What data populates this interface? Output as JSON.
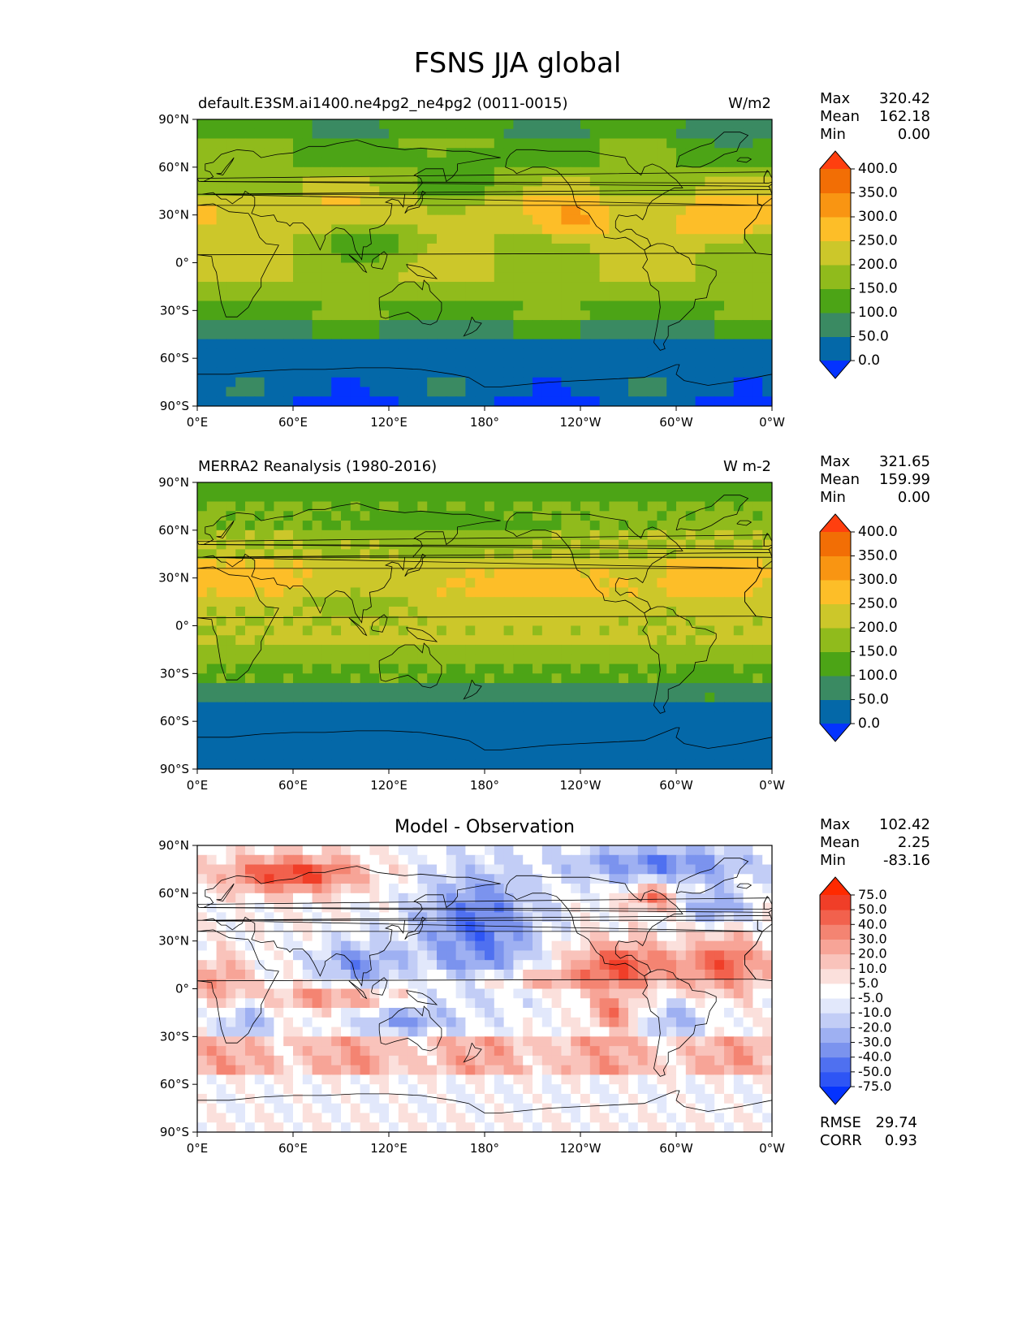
{
  "figure": {
    "title": "FSNS JJA global"
  },
  "chart_data": [
    {
      "type": "heatmap",
      "title": "default.E3SM.ai1400.ne4pg2_ne4pg2 (0011-0015)",
      "units": "W/m2",
      "x_ticks": [
        "0°E",
        "60°E",
        "120°E",
        "180°",
        "120°W",
        "60°W",
        "0°W"
      ],
      "y_ticks": [
        "90°N",
        "60°N",
        "30°N",
        "0°",
        "30°S",
        "60°S",
        "90°S"
      ],
      "xlim": [
        0,
        360
      ],
      "ylim": [
        -90,
        90
      ],
      "colorbar": {
        "levels": [
          "0.0",
          "50.0",
          "100.0",
          "150.0",
          "200.0",
          "250.0",
          "300.0",
          "350.0",
          "400.0"
        ],
        "colors": [
          "#0433ff",
          "#0468a8",
          "#3a8a62",
          "#4ca416",
          "#90bb1c",
          "#ccc72a",
          "#fdbe28",
          "#f99512",
          "#f26e05",
          "#ff3f0f"
        ]
      },
      "stats": [
        {
          "label": "Max",
          "value": "320.42"
        },
        {
          "label": "Mean",
          "value": "162.18"
        },
        {
          "label": "Min",
          "value": "0.00"
        }
      ]
    },
    {
      "type": "heatmap",
      "title": "MERRA2 Reanalysis (1980-2016)",
      "units": "W m-2",
      "x_ticks": [
        "0°E",
        "60°E",
        "120°E",
        "180°",
        "120°W",
        "60°W",
        "0°W"
      ],
      "y_ticks": [
        "90°N",
        "60°N",
        "30°N",
        "0°",
        "30°S",
        "60°S",
        "90°S"
      ],
      "xlim": [
        0,
        360
      ],
      "ylim": [
        -90,
        90
      ],
      "colorbar": {
        "levels": [
          "0.0",
          "50.0",
          "100.0",
          "150.0",
          "200.0",
          "250.0",
          "300.0",
          "350.0",
          "400.0"
        ],
        "colors": [
          "#0433ff",
          "#0468a8",
          "#3a8a62",
          "#4ca416",
          "#90bb1c",
          "#ccc72a",
          "#fdbe28",
          "#f99512",
          "#f26e05",
          "#ff3f0f"
        ]
      },
      "stats": [
        {
          "label": "Max",
          "value": "321.65"
        },
        {
          "label": "Mean",
          "value": "159.99"
        },
        {
          "label": "Min",
          "value": "0.00"
        }
      ]
    },
    {
      "type": "heatmap",
      "title": "Model - Observation",
      "units": "",
      "x_ticks": [
        "0°E",
        "60°E",
        "120°E",
        "180°",
        "120°W",
        "60°W",
        "0°W"
      ],
      "y_ticks": [
        "90°N",
        "60°N",
        "30°N",
        "0°",
        "30°S",
        "60°S",
        "90°S"
      ],
      "xlim": [
        0,
        360
      ],
      "ylim": [
        -90,
        90
      ],
      "colorbar": {
        "levels": [
          "-75.0",
          "-50.0",
          "-40.0",
          "-30.0",
          "-20.0",
          "-10.0",
          "-5.0",
          "5.0",
          "10.0",
          "20.0",
          "30.0",
          "40.0",
          "50.0",
          "75.0"
        ],
        "colors": [
          "#0433ff",
          "#2e55f5",
          "#4f70f0",
          "#7b93ee",
          "#9eb0f2",
          "#c2cdf6",
          "#e2e8fb",
          "#ffffff",
          "#fbe0dc",
          "#f9c3bb",
          "#f7a497",
          "#f48472",
          "#f2614d",
          "#f03e28",
          "#ff2a00"
        ]
      },
      "stats": [
        {
          "label": "Max",
          "value": "102.42"
        },
        {
          "label": "Mean",
          "value": "2.25"
        },
        {
          "label": "Min",
          "value": "-83.16"
        }
      ],
      "metrics": [
        {
          "label": "RMSE",
          "value": "29.74"
        },
        {
          "label": "CORR",
          "value": "0.93"
        }
      ]
    }
  ]
}
